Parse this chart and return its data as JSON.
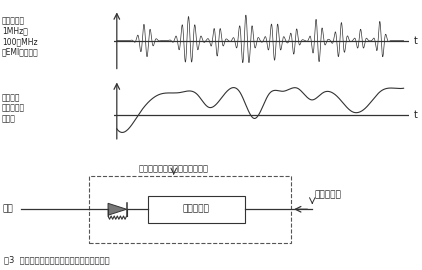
{
  "title": "图3  整流效应将高频电磁干扰转变为可闻噪声",
  "label1": "在输入端处\n1MHz至\n100多MHz\n的EMI高频干扰",
  "label2": "在输出端\n产生可听见\n的信号",
  "label3": "非线性效应表现为整流器的作用",
  "label_input": "输入",
  "label_ideal_amp": "理想放大器",
  "label_audio_amp": "音频放大器",
  "bg_color": "#ffffff",
  "line_color": "#333333",
  "text_color": "#222222"
}
